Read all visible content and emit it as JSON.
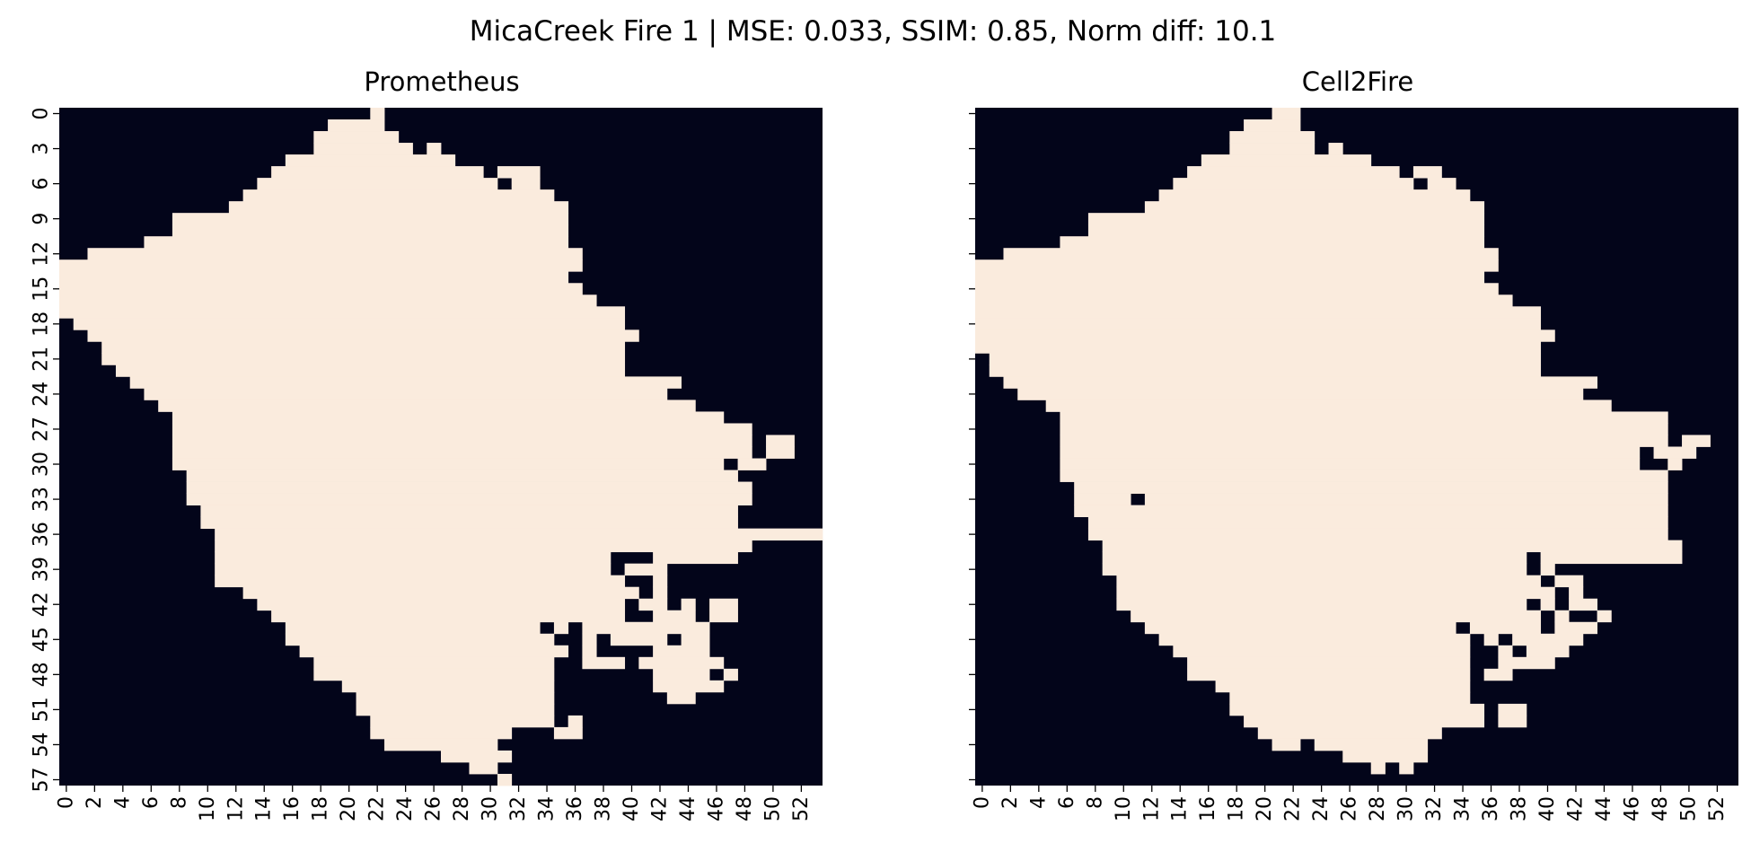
{
  "figure_title": "MicaCreek Fire 1 | MSE: 0.033, SSIM: 0.85, Norm diff: 10.1",
  "colors": {
    "burned": "#faebdd",
    "unburned": "#03051a",
    "text": "#000000"
  },
  "chart_data": [
    {
      "type": "heatmap",
      "title": "Prometheus",
      "xlabel": "",
      "ylabel": "",
      "grid_size": [
        58,
        54
      ],
      "x_ticks": [
        "0",
        "2",
        "4",
        "6",
        "8",
        "10",
        "12",
        "14",
        "16",
        "18",
        "20",
        "22",
        "24",
        "26",
        "28",
        "30",
        "32",
        "34",
        "36",
        "38",
        "40",
        "42",
        "44",
        "46",
        "48",
        "50",
        "52"
      ],
      "y_ticks": [
        "0",
        "3",
        "6",
        "9",
        "12",
        "15",
        "18",
        "21",
        "24",
        "27",
        "30",
        "33",
        "36",
        "39",
        "42",
        "45",
        "48",
        "51",
        "54",
        "57"
      ],
      "show_y_tick_labels": true,
      "cell_value_burned": 1,
      "cell_value_unburned": 0,
      "burned_row_spans": [
        [
          [
            22,
            22
          ]
        ],
        [
          [
            19,
            22
          ]
        ],
        [
          [
            18,
            23
          ]
        ],
        [
          [
            18,
            24
          ],
          [
            26,
            26
          ]
        ],
        [
          [
            16,
            27
          ]
        ],
        [
          [
            15,
            29
          ],
          [
            31,
            33
          ]
        ],
        [
          [
            14,
            30
          ],
          [
            32,
            33
          ]
        ],
        [
          [
            13,
            34
          ]
        ],
        [
          [
            12,
            35
          ]
        ],
        [
          [
            8,
            35
          ]
        ],
        [
          [
            8,
            35
          ]
        ],
        [
          [
            6,
            35
          ]
        ],
        [
          [
            2,
            36
          ]
        ],
        [
          [
            0,
            36
          ]
        ],
        [
          [
            0,
            35
          ]
        ],
        [
          [
            0,
            36
          ]
        ],
        [
          [
            0,
            37
          ]
        ],
        [
          [
            0,
            39
          ]
        ],
        [
          [
            1,
            39
          ]
        ],
        [
          [
            2,
            40
          ]
        ],
        [
          [
            3,
            39
          ]
        ],
        [
          [
            3,
            39
          ]
        ],
        [
          [
            4,
            39
          ]
        ],
        [
          [
            5,
            43
          ]
        ],
        [
          [
            6,
            42
          ]
        ],
        [
          [
            7,
            44
          ]
        ],
        [
          [
            8,
            46
          ]
        ],
        [
          [
            8,
            48
          ]
        ],
        [
          [
            8,
            48
          ],
          [
            50,
            51
          ]
        ],
        [
          [
            8,
            48
          ],
          [
            50,
            51
          ]
        ],
        [
          [
            8,
            46
          ],
          [
            48,
            49
          ]
        ],
        [
          [
            9,
            47
          ]
        ],
        [
          [
            9,
            48
          ]
        ],
        [
          [
            9,
            48
          ]
        ],
        [
          [
            10,
            47
          ]
        ],
        [
          [
            10,
            47
          ]
        ],
        [
          [
            11,
            53
          ]
        ],
        [
          [
            11,
            48
          ]
        ],
        [
          [
            11,
            38
          ],
          [
            42,
            47
          ]
        ],
        [
          [
            11,
            38
          ],
          [
            40,
            42
          ]
        ],
        [
          [
            11,
            39
          ],
          [
            42,
            42
          ]
        ],
        [
          [
            13,
            40
          ],
          [
            42,
            42
          ]
        ],
        [
          [
            14,
            39
          ],
          [
            41,
            42
          ],
          [
            44,
            44
          ],
          [
            46,
            47
          ]
        ],
        [
          [
            15,
            39
          ],
          [
            42,
            44
          ],
          [
            46,
            47
          ]
        ],
        [
          [
            16,
            33
          ],
          [
            35,
            35
          ],
          [
            37,
            45
          ]
        ],
        [
          [
            16,
            34
          ],
          [
            37,
            37
          ],
          [
            39,
            42
          ],
          [
            44,
            45
          ]
        ],
        [
          [
            17,
            35
          ],
          [
            37,
            37
          ],
          [
            42,
            45
          ]
        ],
        [
          [
            18,
            34
          ],
          [
            37,
            39
          ],
          [
            41,
            46
          ]
        ],
        [
          [
            18,
            34
          ],
          [
            42,
            45
          ],
          [
            47,
            47
          ]
        ],
        [
          [
            20,
            34
          ],
          [
            42,
            46
          ]
        ],
        [
          [
            21,
            34
          ],
          [
            43,
            44
          ]
        ],
        [
          [
            21,
            34
          ]
        ],
        [
          [
            22,
            34
          ],
          [
            36,
            36
          ]
        ],
        [
          [
            22,
            31
          ],
          [
            35,
            36
          ]
        ],
        [
          [
            23,
            30
          ]
        ],
        [
          [
            27,
            31
          ]
        ],
        [
          [
            29,
            30
          ]
        ],
        [
          [
            31,
            31
          ]
        ]
      ],
      "values_encoding": "burned cells listed as inclusive [start_col,end_col] runs per row, row 0 at top"
    },
    {
      "type": "heatmap",
      "title": "Cell2Fire",
      "xlabel": "",
      "ylabel": "",
      "grid_size": [
        58,
        54
      ],
      "x_ticks": [
        "0",
        "2",
        "4",
        "6",
        "8",
        "10",
        "12",
        "14",
        "16",
        "18",
        "20",
        "22",
        "24",
        "26",
        "28",
        "30",
        "32",
        "34",
        "36",
        "38",
        "40",
        "42",
        "44",
        "46",
        "48",
        "50",
        "52"
      ],
      "y_ticks": [
        "0",
        "3",
        "6",
        "9",
        "12",
        "15",
        "18",
        "21",
        "24",
        "27",
        "30",
        "33",
        "36",
        "39",
        "42",
        "45",
        "48",
        "51",
        "54",
        "57"
      ],
      "show_y_tick_labels": false,
      "cell_value_burned": 1,
      "cell_value_unburned": 0,
      "burned_row_spans": [
        [
          [
            21,
            22
          ]
        ],
        [
          [
            19,
            22
          ]
        ],
        [
          [
            18,
            23
          ]
        ],
        [
          [
            18,
            23
          ],
          [
            25,
            25
          ]
        ],
        [
          [
            16,
            27
          ]
        ],
        [
          [
            15,
            29
          ],
          [
            31,
            32
          ]
        ],
        [
          [
            14,
            30
          ],
          [
            32,
            33
          ]
        ],
        [
          [
            13,
            34
          ]
        ],
        [
          [
            12,
            35
          ]
        ],
        [
          [
            8,
            35
          ]
        ],
        [
          [
            8,
            35
          ]
        ],
        [
          [
            6,
            35
          ]
        ],
        [
          [
            2,
            36
          ]
        ],
        [
          [
            0,
            36
          ]
        ],
        [
          [
            0,
            35
          ]
        ],
        [
          [
            0,
            36
          ]
        ],
        [
          [
            0,
            37
          ]
        ],
        [
          [
            0,
            39
          ]
        ],
        [
          [
            0,
            39
          ]
        ],
        [
          [
            0,
            40
          ]
        ],
        [
          [
            0,
            39
          ]
        ],
        [
          [
            1,
            39
          ]
        ],
        [
          [
            1,
            39
          ]
        ],
        [
          [
            2,
            43
          ]
        ],
        [
          [
            3,
            42
          ]
        ],
        [
          [
            5,
            44
          ]
        ],
        [
          [
            6,
            48
          ]
        ],
        [
          [
            6,
            48
          ]
        ],
        [
          [
            6,
            48
          ],
          [
            50,
            51
          ]
        ],
        [
          [
            6,
            46
          ],
          [
            48,
            50
          ]
        ],
        [
          [
            6,
            46
          ],
          [
            49,
            49
          ]
        ],
        [
          [
            6,
            48
          ]
        ],
        [
          [
            7,
            48
          ]
        ],
        [
          [
            7,
            10
          ],
          [
            12,
            48
          ]
        ],
        [
          [
            7,
            48
          ]
        ],
        [
          [
            8,
            48
          ]
        ],
        [
          [
            8,
            48
          ]
        ],
        [
          [
            9,
            49
          ]
        ],
        [
          [
            9,
            38
          ],
          [
            40,
            49
          ]
        ],
        [
          [
            9,
            38
          ],
          [
            40,
            40
          ]
        ],
        [
          [
            10,
            39
          ],
          [
            41,
            42
          ]
        ],
        [
          [
            10,
            40
          ],
          [
            42,
            42
          ]
        ],
        [
          [
            10,
            38
          ],
          [
            40,
            40
          ],
          [
            42,
            43
          ]
        ],
        [
          [
            11,
            39
          ],
          [
            41,
            41
          ],
          [
            44,
            44
          ]
        ],
        [
          [
            12,
            33
          ],
          [
            35,
            39
          ],
          [
            41,
            43
          ]
        ],
        [
          [
            13,
            34
          ],
          [
            36,
            36
          ],
          [
            38,
            42
          ]
        ],
        [
          [
            14,
            34
          ],
          [
            37,
            37
          ],
          [
            39,
            41
          ]
        ],
        [
          [
            15,
            34
          ],
          [
            37,
            40
          ]
        ],
        [
          [
            15,
            34
          ],
          [
            36,
            37
          ]
        ],
        [
          [
            17,
            34
          ]
        ],
        [
          [
            18,
            34
          ]
        ],
        [
          [
            18,
            35
          ],
          [
            37,
            38
          ]
        ],
        [
          [
            19,
            35
          ],
          [
            37,
            38
          ]
        ],
        [
          [
            20,
            32
          ]
        ],
        [
          [
            21,
            22
          ],
          [
            24,
            31
          ]
        ],
        [
          [
            26,
            31
          ]
        ],
        [
          [
            28,
            28
          ],
          [
            30,
            30
          ]
        ],
        []
      ],
      "values_encoding": "burned cells listed as inclusive [start_col,end_col] runs per row, row 0 at top"
    }
  ]
}
